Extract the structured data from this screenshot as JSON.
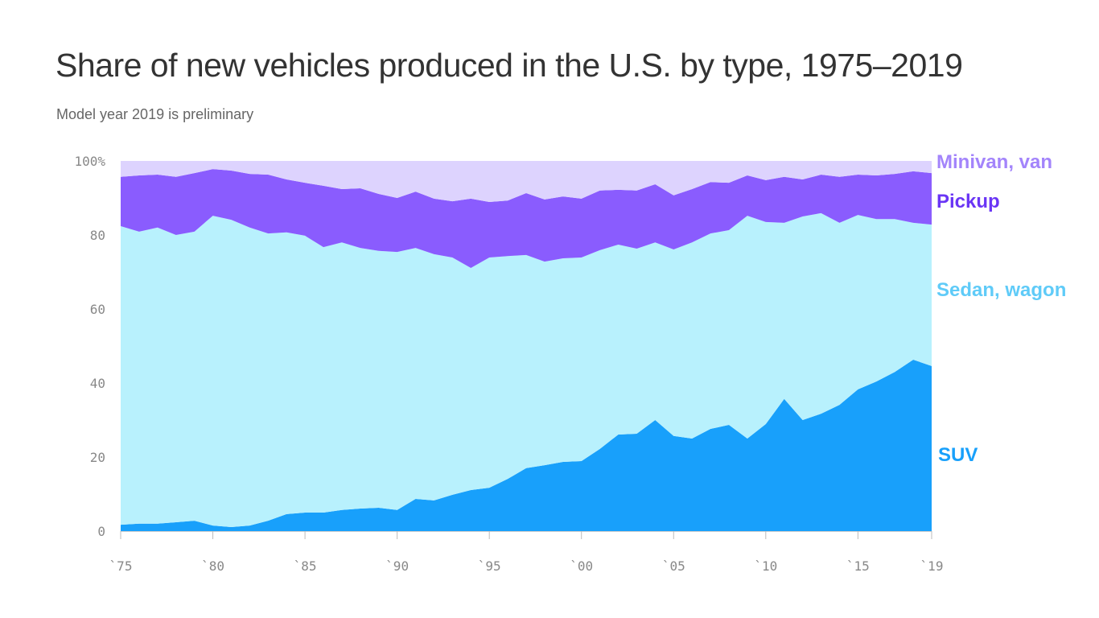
{
  "chart_data": {
    "type": "area",
    "stacked": true,
    "title": "Share of new vehicles produced in the U.S. by type, 1975–2019",
    "subtitle": "Model year 2019 is preliminary",
    "xlabel": "",
    "ylabel": "",
    "xlim": [
      1975,
      2019
    ],
    "ylim": [
      0,
      100
    ],
    "grid": false,
    "legend": "right, inline labels",
    "x": [
      1975,
      1976,
      1977,
      1978,
      1979,
      1980,
      1981,
      1982,
      1983,
      1984,
      1985,
      1986,
      1987,
      1988,
      1989,
      1990,
      1991,
      1992,
      1993,
      1994,
      1995,
      1996,
      1997,
      1998,
      1999,
      2000,
      2001,
      2002,
      2003,
      2004,
      2005,
      2006,
      2007,
      2008,
      2009,
      2010,
      2011,
      2012,
      2013,
      2014,
      2015,
      2016,
      2017,
      2018,
      2019
    ],
    "x_ticks": [
      1975,
      1980,
      1985,
      1990,
      1995,
      2000,
      2005,
      2010,
      2015,
      2019
    ],
    "x_tick_labels": [
      "`75",
      "`80",
      "`85",
      "`90",
      "`95",
      "`00",
      "`05",
      "`10",
      "`15",
      "`19"
    ],
    "y_ticks": [
      0,
      20,
      40,
      60,
      80,
      100
    ],
    "y_tick_labels": [
      "0",
      "20",
      "40",
      "60",
      "80",
      "100%"
    ],
    "series": [
      {
        "name": "SUV",
        "color": "#18a0fb",
        "label_color": "#18a0fb",
        "values": [
          1.7,
          2.0,
          2.0,
          2.4,
          2.8,
          1.5,
          1.1,
          1.5,
          2.8,
          4.6,
          5.0,
          5.0,
          5.7,
          6.1,
          6.3,
          5.7,
          8.7,
          8.3,
          9.8,
          11.1,
          11.7,
          14.1,
          17.0,
          17.8,
          18.7,
          18.9,
          22.2,
          26.1,
          26.3,
          30.0,
          25.7,
          25.0,
          27.6,
          28.7,
          25.0,
          28.9,
          35.7,
          30.0,
          31.7,
          34.1,
          38.3,
          40.4,
          43.0,
          46.3,
          44.6
        ]
      },
      {
        "name": "Sedan, wagon",
        "color": "#b8f1fd",
        "label_color": "#5fcbf8",
        "values": [
          80.7,
          78.9,
          80.0,
          77.6,
          78.1,
          83.7,
          83.0,
          80.5,
          77.6,
          76.1,
          74.8,
          71.7,
          72.3,
          70.4,
          69.4,
          69.7,
          67.8,
          66.5,
          64.1,
          60.0,
          62.2,
          60.2,
          57.6,
          55.0,
          55.0,
          55.0,
          53.7,
          51.3,
          50.0,
          48.0,
          50.4,
          53.0,
          52.8,
          52.6,
          60.2,
          54.6,
          47.6,
          55.0,
          54.2,
          49.2,
          47.1,
          43.9,
          41.3,
          37.0,
          38.2
        ]
      },
      {
        "name": "Pickup",
        "color": "#8a5cfe",
        "label_color": "#6a35f5",
        "values": [
          13.3,
          15.2,
          14.3,
          15.7,
          15.8,
          12.6,
          13.3,
          14.5,
          15.9,
          14.3,
          14.3,
          16.6,
          14.4,
          16.1,
          15.4,
          14.6,
          15.2,
          15.0,
          15.2,
          18.7,
          15.0,
          15.0,
          16.7,
          16.8,
          16.7,
          15.9,
          16.1,
          14.8,
          15.7,
          15.7,
          14.6,
          14.4,
          13.9,
          12.8,
          10.9,
          11.3,
          12.4,
          10.0,
          10.4,
          12.4,
          10.9,
          11.8,
          12.2,
          13.9,
          13.9
        ]
      },
      {
        "name": "Minivan, van",
        "color": "#ddd3fe",
        "label_color": "#a384fb",
        "values": [
          4.3,
          3.9,
          3.7,
          4.3,
          3.3,
          2.2,
          2.6,
          3.5,
          3.7,
          5.0,
          5.9,
          6.7,
          7.6,
          7.4,
          8.9,
          10.0,
          8.3,
          10.2,
          10.9,
          10.2,
          11.1,
          10.7,
          8.7,
          10.4,
          9.6,
          10.2,
          8.0,
          7.8,
          8.0,
          6.3,
          9.3,
          7.6,
          5.7,
          5.9,
          3.9,
          5.2,
          4.3,
          5.0,
          3.7,
          4.3,
          3.7,
          3.9,
          3.5,
          2.8,
          3.3
        ]
      }
    ]
  }
}
